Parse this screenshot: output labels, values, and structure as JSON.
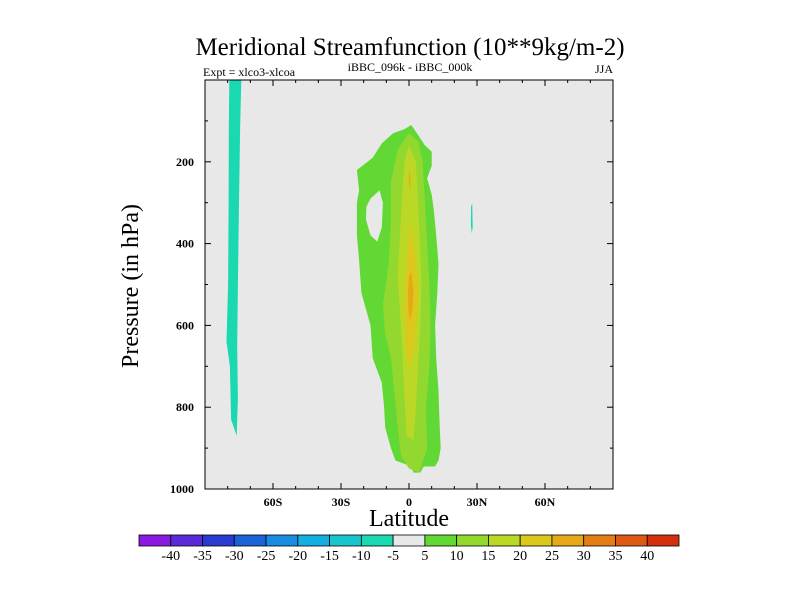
{
  "chart_data": {
    "type": "contour",
    "title": "Meridional Streamfunction (10**9kg/m-2)",
    "left_string": "Expt = xlco3-xlcoa",
    "center_string": "iBBC_096k - iBBC_000k",
    "right_string": "JJA",
    "xlabel": "Latitude",
    "ylabel": "Pressure (in hPa)",
    "xlim": [
      -90,
      90
    ],
    "ylim": [
      1000,
      0
    ],
    "x_ticks": [
      {
        "value": -60,
        "label": "60S"
      },
      {
        "value": -30,
        "label": "30S"
      },
      {
        "value": 0,
        "label": "0"
      },
      {
        "value": 30,
        "label": "30N"
      },
      {
        "value": 60,
        "label": "60N"
      }
    ],
    "y_ticks": [
      {
        "value": 200,
        "label": "200"
      },
      {
        "value": 400,
        "label": "400"
      },
      {
        "value": 600,
        "label": "600"
      },
      {
        "value": 800,
        "label": "800"
      },
      {
        "value": 1000,
        "label": "1000"
      }
    ],
    "colorbar": {
      "labels": [
        "-40",
        "-35",
        "-30",
        "-25",
        "-20",
        "-15",
        "-10",
        "-5",
        "5",
        "10",
        "15",
        "20",
        "25",
        "30",
        "35",
        "40"
      ],
      "colors": [
        "#8a1ae0",
        "#5a2ad8",
        "#2a3ad0",
        "#1a62d6",
        "#178ce0",
        "#14aedf",
        "#16c6cc",
        "#1ad9b0",
        "#e8e8e8",
        "#62d834",
        "#92d82e",
        "#bcd826",
        "#dcc81c",
        "#e6a816",
        "#e47e14",
        "#de5a14",
        "#d4300e"
      ]
    },
    "background_color": "#e8e8e8",
    "regions": [
      {
        "level": "-10 to -5",
        "color": "#1ad9b0",
        "outline": [
          [
            -77,
            0
          ],
          [
            -74,
            0
          ],
          [
            -74.5,
            120
          ],
          [
            -75,
            300
          ],
          [
            -75.5,
            500
          ],
          [
            -75.8,
            650
          ],
          [
            -75.5,
            780
          ],
          [
            -76,
            870
          ],
          [
            -78.5,
            830
          ],
          [
            -79,
            700
          ],
          [
            -80.5,
            640
          ],
          [
            -79.8,
            500
          ],
          [
            -79.6,
            300
          ],
          [
            -79.5,
            120
          ],
          [
            -79.3,
            0
          ]
        ]
      },
      {
        "level": "-10 to -5",
        "color": "#1ad9b0",
        "outline": [
          [
            27.4,
            310
          ],
          [
            27.9,
            300
          ],
          [
            28.1,
            360
          ],
          [
            27.7,
            375
          ],
          [
            27.3,
            355
          ]
        ]
      },
      {
        "level": "5 to 10",
        "color": "#62d834",
        "outline": [
          [
            1,
            110
          ],
          [
            3.5,
            130
          ],
          [
            7,
            160
          ],
          [
            10,
            175
          ],
          [
            10,
            210
          ],
          [
            8,
            240
          ],
          [
            10,
            280
          ],
          [
            11,
            320
          ],
          [
            12,
            380
          ],
          [
            13,
            450
          ],
          [
            12.5,
            520
          ],
          [
            11.5,
            600
          ],
          [
            12,
            680
          ],
          [
            13,
            760
          ],
          [
            13.5,
            840
          ],
          [
            14,
            900
          ],
          [
            13,
            930
          ],
          [
            11.5,
            945
          ],
          [
            6.5,
            945
          ],
          [
            5,
            960
          ],
          [
            2,
            960
          ],
          [
            1,
            945
          ],
          [
            -6,
            930
          ],
          [
            -8,
            900
          ],
          [
            -10.5,
            850
          ],
          [
            -11,
            800
          ],
          [
            -12,
            740
          ],
          [
            -16,
            680
          ],
          [
            -17,
            600
          ],
          [
            -21,
            520
          ],
          [
            -22,
            440
          ],
          [
            -23,
            380
          ],
          [
            -23,
            300
          ],
          [
            -22,
            270
          ],
          [
            -23,
            220
          ],
          [
            -16,
            190
          ],
          [
            -12,
            155
          ],
          [
            -7,
            130
          ],
          [
            -2,
            120
          ]
        ]
      },
      {
        "level": "10 to 15",
        "color": "#92d82e",
        "outline": [
          [
            0,
            130
          ],
          [
            4,
            150
          ],
          [
            6,
            200
          ],
          [
            7,
            300
          ],
          [
            8,
            400
          ],
          [
            9,
            500
          ],
          [
            9.5,
            600
          ],
          [
            9,
            700
          ],
          [
            7.5,
            800
          ],
          [
            8,
            900
          ],
          [
            4.5,
            960
          ],
          [
            0,
            950
          ],
          [
            -3.5,
            920
          ],
          [
            -5,
            850
          ],
          [
            -6.5,
            760
          ],
          [
            -8,
            680
          ],
          [
            -10.5,
            620
          ],
          [
            -11.5,
            550
          ],
          [
            -9,
            450
          ],
          [
            -8,
            350
          ],
          [
            -8,
            250
          ],
          [
            -5,
            170
          ]
        ]
      },
      {
        "level": "15 to 20",
        "color": "#bcd826",
        "outline": [
          [
            0,
            160
          ],
          [
            3,
            200
          ],
          [
            4,
            300
          ],
          [
            5,
            420
          ],
          [
            5.5,
            500
          ],
          [
            5,
            600
          ],
          [
            4,
            700
          ],
          [
            3,
            800
          ],
          [
            2,
            880
          ],
          [
            -1,
            870
          ],
          [
            -2,
            780
          ],
          [
            -3,
            650
          ],
          [
            -4,
            560
          ],
          [
            -5,
            480
          ],
          [
            -4,
            380
          ],
          [
            -3,
            280
          ],
          [
            -2,
            200
          ]
        ]
      },
      {
        "level": "20 to 25",
        "color": "#dcc81c",
        "outline": [
          [
            1,
            350
          ],
          [
            3,
            440
          ],
          [
            4,
            510
          ],
          [
            3.5,
            580
          ],
          [
            2.5,
            640
          ],
          [
            1,
            700
          ],
          [
            -0.5,
            690
          ],
          [
            -1.5,
            620
          ],
          [
            -2,
            560
          ],
          [
            -1.5,
            480
          ],
          [
            -0.5,
            400
          ]
        ]
      },
      {
        "level": "25 to 30",
        "color": "#e6a816",
        "outline": [
          [
            1,
            470
          ],
          [
            2,
            520
          ],
          [
            1.5,
            560
          ],
          [
            0.5,
            590
          ],
          [
            -0.3,
            560
          ],
          [
            -0.4,
            520
          ],
          [
            0,
            480
          ]
        ]
      },
      {
        "level": "25 to 30",
        "color": "#e6a816",
        "outline": [
          [
            0.3,
            220
          ],
          [
            0.6,
            240
          ],
          [
            0.5,
            270
          ],
          [
            0.1,
            260
          ],
          [
            -0.1,
            235
          ]
        ]
      },
      {
        "level": "-5 to 5",
        "color": "#e8e8e8",
        "outline": [
          [
            -17,
            290
          ],
          [
            -13,
            270
          ],
          [
            -11.5,
            300
          ],
          [
            -12,
            360
          ],
          [
            -14,
            395
          ],
          [
            -17,
            380
          ],
          [
            -19,
            340
          ],
          [
            -18.8,
            310
          ]
        ]
      }
    ]
  }
}
